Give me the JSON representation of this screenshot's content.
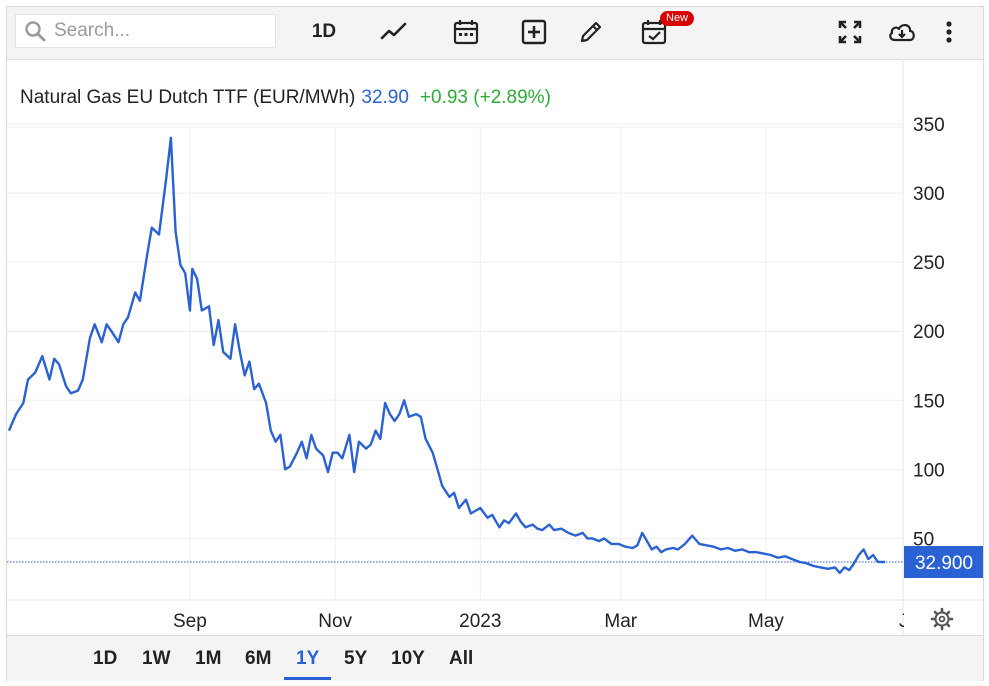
{
  "toolbar": {
    "search_placeholder": "Search...",
    "interval_label": "1D",
    "new_badge": "New",
    "icons": [
      "search-icon",
      "line-chart-icon",
      "calendar-icon",
      "add-box-icon",
      "pencil-icon",
      "calendar-check-icon",
      "fullscreen-icon",
      "cloud-download-icon",
      "more-vert-icon"
    ]
  },
  "colors": {
    "line": "#2a62d3",
    "up": "#2eab3a",
    "price_tag_bg": "#2a62d3",
    "grid": "#eeeeee"
  },
  "legend": {
    "name": "Natural Gas EU Dutch TTF (EUR/MWh)",
    "price": "32.90",
    "change": "+0.93 (+2.89%)"
  },
  "price_tag": "32.900",
  "ranges": {
    "active": "1Y",
    "items": [
      "1D",
      "1W",
      "1M",
      "6M",
      "1Y",
      "5Y",
      "10Y",
      "All"
    ]
  },
  "chart_data": {
    "type": "line",
    "title": "Natural Gas EU Dutch TTF (EUR/MWh)",
    "ylim": [
      0,
      380
    ],
    "yticks": [
      50,
      100,
      150,
      200,
      250,
      300,
      350
    ],
    "ytick_labels": [
      "50",
      "100",
      "150",
      "200",
      "250",
      "300",
      "350"
    ],
    "xlim": [
      "2022-06-17",
      "2023-06-20"
    ],
    "xticks": [
      {
        "date": "2022-09-01",
        "label": "Sep"
      },
      {
        "date": "2022-11-01",
        "label": "Nov"
      },
      {
        "date": "2023-01-01",
        "label": "2023"
      },
      {
        "date": "2023-03-01",
        "label": "Mar"
      },
      {
        "date": "2023-05-01",
        "label": "May"
      },
      {
        "date": "2023-07-01",
        "label": "Jul"
      }
    ],
    "grid": true,
    "last_value": 32.9,
    "series": [
      {
        "name": "Natural Gas EU Dutch TTF (EUR/MWh)",
        "points": [
          [
            "2022-06-17",
            128
          ],
          [
            "2022-06-20",
            140
          ],
          [
            "2022-06-23",
            148
          ],
          [
            "2022-06-25",
            165
          ],
          [
            "2022-06-28",
            170
          ],
          [
            "2022-07-01",
            182
          ],
          [
            "2022-07-04",
            165
          ],
          [
            "2022-07-06",
            180
          ],
          [
            "2022-07-08",
            176
          ],
          [
            "2022-07-11",
            160
          ],
          [
            "2022-07-13",
            155
          ],
          [
            "2022-07-16",
            157
          ],
          [
            "2022-07-18",
            165
          ],
          [
            "2022-07-21",
            195
          ],
          [
            "2022-07-23",
            205
          ],
          [
            "2022-07-26",
            192
          ],
          [
            "2022-07-28",
            205
          ],
          [
            "2022-07-30",
            200
          ],
          [
            "2022-08-02",
            192
          ],
          [
            "2022-08-04",
            205
          ],
          [
            "2022-08-06",
            210
          ],
          [
            "2022-08-09",
            228
          ],
          [
            "2022-08-11",
            222
          ],
          [
            "2022-08-14",
            255
          ],
          [
            "2022-08-16",
            275
          ],
          [
            "2022-08-19",
            270
          ],
          [
            "2022-08-22",
            310
          ],
          [
            "2022-08-24",
            340
          ],
          [
            "2022-08-26",
            272
          ],
          [
            "2022-08-28",
            248
          ],
          [
            "2022-08-30",
            242
          ],
          [
            "2022-09-01",
            215
          ],
          [
            "2022-09-02",
            245
          ],
          [
            "2022-09-04",
            238
          ],
          [
            "2022-09-06",
            215
          ],
          [
            "2022-09-09",
            218
          ],
          [
            "2022-09-11",
            190
          ],
          [
            "2022-09-13",
            208
          ],
          [
            "2022-09-15",
            185
          ],
          [
            "2022-09-18",
            180
          ],
          [
            "2022-09-20",
            205
          ],
          [
            "2022-09-22",
            185
          ],
          [
            "2022-09-24",
            168
          ],
          [
            "2022-09-26",
            178
          ],
          [
            "2022-09-28",
            158
          ],
          [
            "2022-09-30",
            162
          ],
          [
            "2022-10-03",
            148
          ],
          [
            "2022-10-05",
            128
          ],
          [
            "2022-10-07",
            120
          ],
          [
            "2022-10-09",
            125
          ],
          [
            "2022-10-11",
            100
          ],
          [
            "2022-10-13",
            102
          ],
          [
            "2022-10-16",
            112
          ],
          [
            "2022-10-18",
            120
          ],
          [
            "2022-10-20",
            108
          ],
          [
            "2022-10-22",
            125
          ],
          [
            "2022-10-24",
            115
          ],
          [
            "2022-10-27",
            110
          ],
          [
            "2022-10-29",
            98
          ],
          [
            "2022-10-31",
            112
          ],
          [
            "2022-11-02",
            112
          ],
          [
            "2022-11-04",
            108
          ],
          [
            "2022-11-07",
            125
          ],
          [
            "2022-11-09",
            98
          ],
          [
            "2022-11-11",
            120
          ],
          [
            "2022-11-14",
            115
          ],
          [
            "2022-11-16",
            118
          ],
          [
            "2022-11-18",
            128
          ],
          [
            "2022-11-20",
            122
          ],
          [
            "2022-11-22",
            148
          ],
          [
            "2022-11-24",
            140
          ],
          [
            "2022-11-26",
            135
          ],
          [
            "2022-11-28",
            140
          ],
          [
            "2022-11-30",
            150
          ],
          [
            "2022-12-02",
            138
          ],
          [
            "2022-12-05",
            140
          ],
          [
            "2022-12-07",
            138
          ],
          [
            "2022-12-09",
            122
          ],
          [
            "2022-12-12",
            112
          ],
          [
            "2022-12-14",
            100
          ],
          [
            "2022-12-16",
            88
          ],
          [
            "2022-12-19",
            80
          ],
          [
            "2022-12-21",
            83
          ],
          [
            "2022-12-23",
            72
          ],
          [
            "2022-12-26",
            78
          ],
          [
            "2022-12-28",
            68
          ],
          [
            "2023-01-01",
            72
          ],
          [
            "2023-01-04",
            65
          ],
          [
            "2023-01-06",
            67
          ],
          [
            "2023-01-09",
            58
          ],
          [
            "2023-01-11",
            63
          ],
          [
            "2023-01-13",
            61
          ],
          [
            "2023-01-16",
            68
          ],
          [
            "2023-01-18",
            62
          ],
          [
            "2023-01-20",
            58
          ],
          [
            "2023-01-23",
            60
          ],
          [
            "2023-01-25",
            57
          ],
          [
            "2023-01-27",
            56
          ],
          [
            "2023-01-30",
            60
          ],
          [
            "2023-02-01",
            56
          ],
          [
            "2023-02-04",
            57
          ],
          [
            "2023-02-07",
            54
          ],
          [
            "2023-02-10",
            52
          ],
          [
            "2023-02-13",
            54
          ],
          [
            "2023-02-15",
            50
          ],
          [
            "2023-02-17",
            50
          ],
          [
            "2023-02-20",
            48
          ],
          [
            "2023-02-22",
            50
          ],
          [
            "2023-02-25",
            46
          ],
          [
            "2023-02-28",
            46
          ],
          [
            "2023-03-03",
            44
          ],
          [
            "2023-03-06",
            43
          ],
          [
            "2023-03-08",
            45
          ],
          [
            "2023-03-10",
            54
          ],
          [
            "2023-03-12",
            48
          ],
          [
            "2023-03-14",
            42
          ],
          [
            "2023-03-16",
            44
          ],
          [
            "2023-03-18",
            40
          ],
          [
            "2023-03-20",
            42
          ],
          [
            "2023-03-23",
            43
          ],
          [
            "2023-03-25",
            42
          ],
          [
            "2023-03-28",
            46
          ],
          [
            "2023-03-31",
            52
          ],
          [
            "2023-04-03",
            46
          ],
          [
            "2023-04-06",
            45
          ],
          [
            "2023-04-09",
            44
          ],
          [
            "2023-04-12",
            42
          ],
          [
            "2023-04-15",
            43
          ],
          [
            "2023-04-18",
            41
          ],
          [
            "2023-04-21",
            42
          ],
          [
            "2023-04-24",
            40
          ],
          [
            "2023-04-27",
            40
          ],
          [
            "2023-04-30",
            39
          ],
          [
            "2023-05-03",
            38
          ],
          [
            "2023-05-06",
            36
          ],
          [
            "2023-05-09",
            37
          ],
          [
            "2023-05-12",
            35
          ],
          [
            "2023-05-15",
            33
          ],
          [
            "2023-05-18",
            32
          ],
          [
            "2023-05-21",
            30
          ],
          [
            "2023-05-24",
            29
          ],
          [
            "2023-05-27",
            28
          ],
          [
            "2023-05-30",
            29
          ],
          [
            "2023-06-01",
            25
          ],
          [
            "2023-06-03",
            29
          ],
          [
            "2023-06-05",
            27
          ],
          [
            "2023-06-07",
            32
          ],
          [
            "2023-06-09",
            38
          ],
          [
            "2023-06-11",
            42
          ],
          [
            "2023-06-13",
            35
          ],
          [
            "2023-06-15",
            38
          ],
          [
            "2023-06-17",
            33
          ],
          [
            "2023-06-20",
            32.9
          ]
        ]
      }
    ]
  }
}
